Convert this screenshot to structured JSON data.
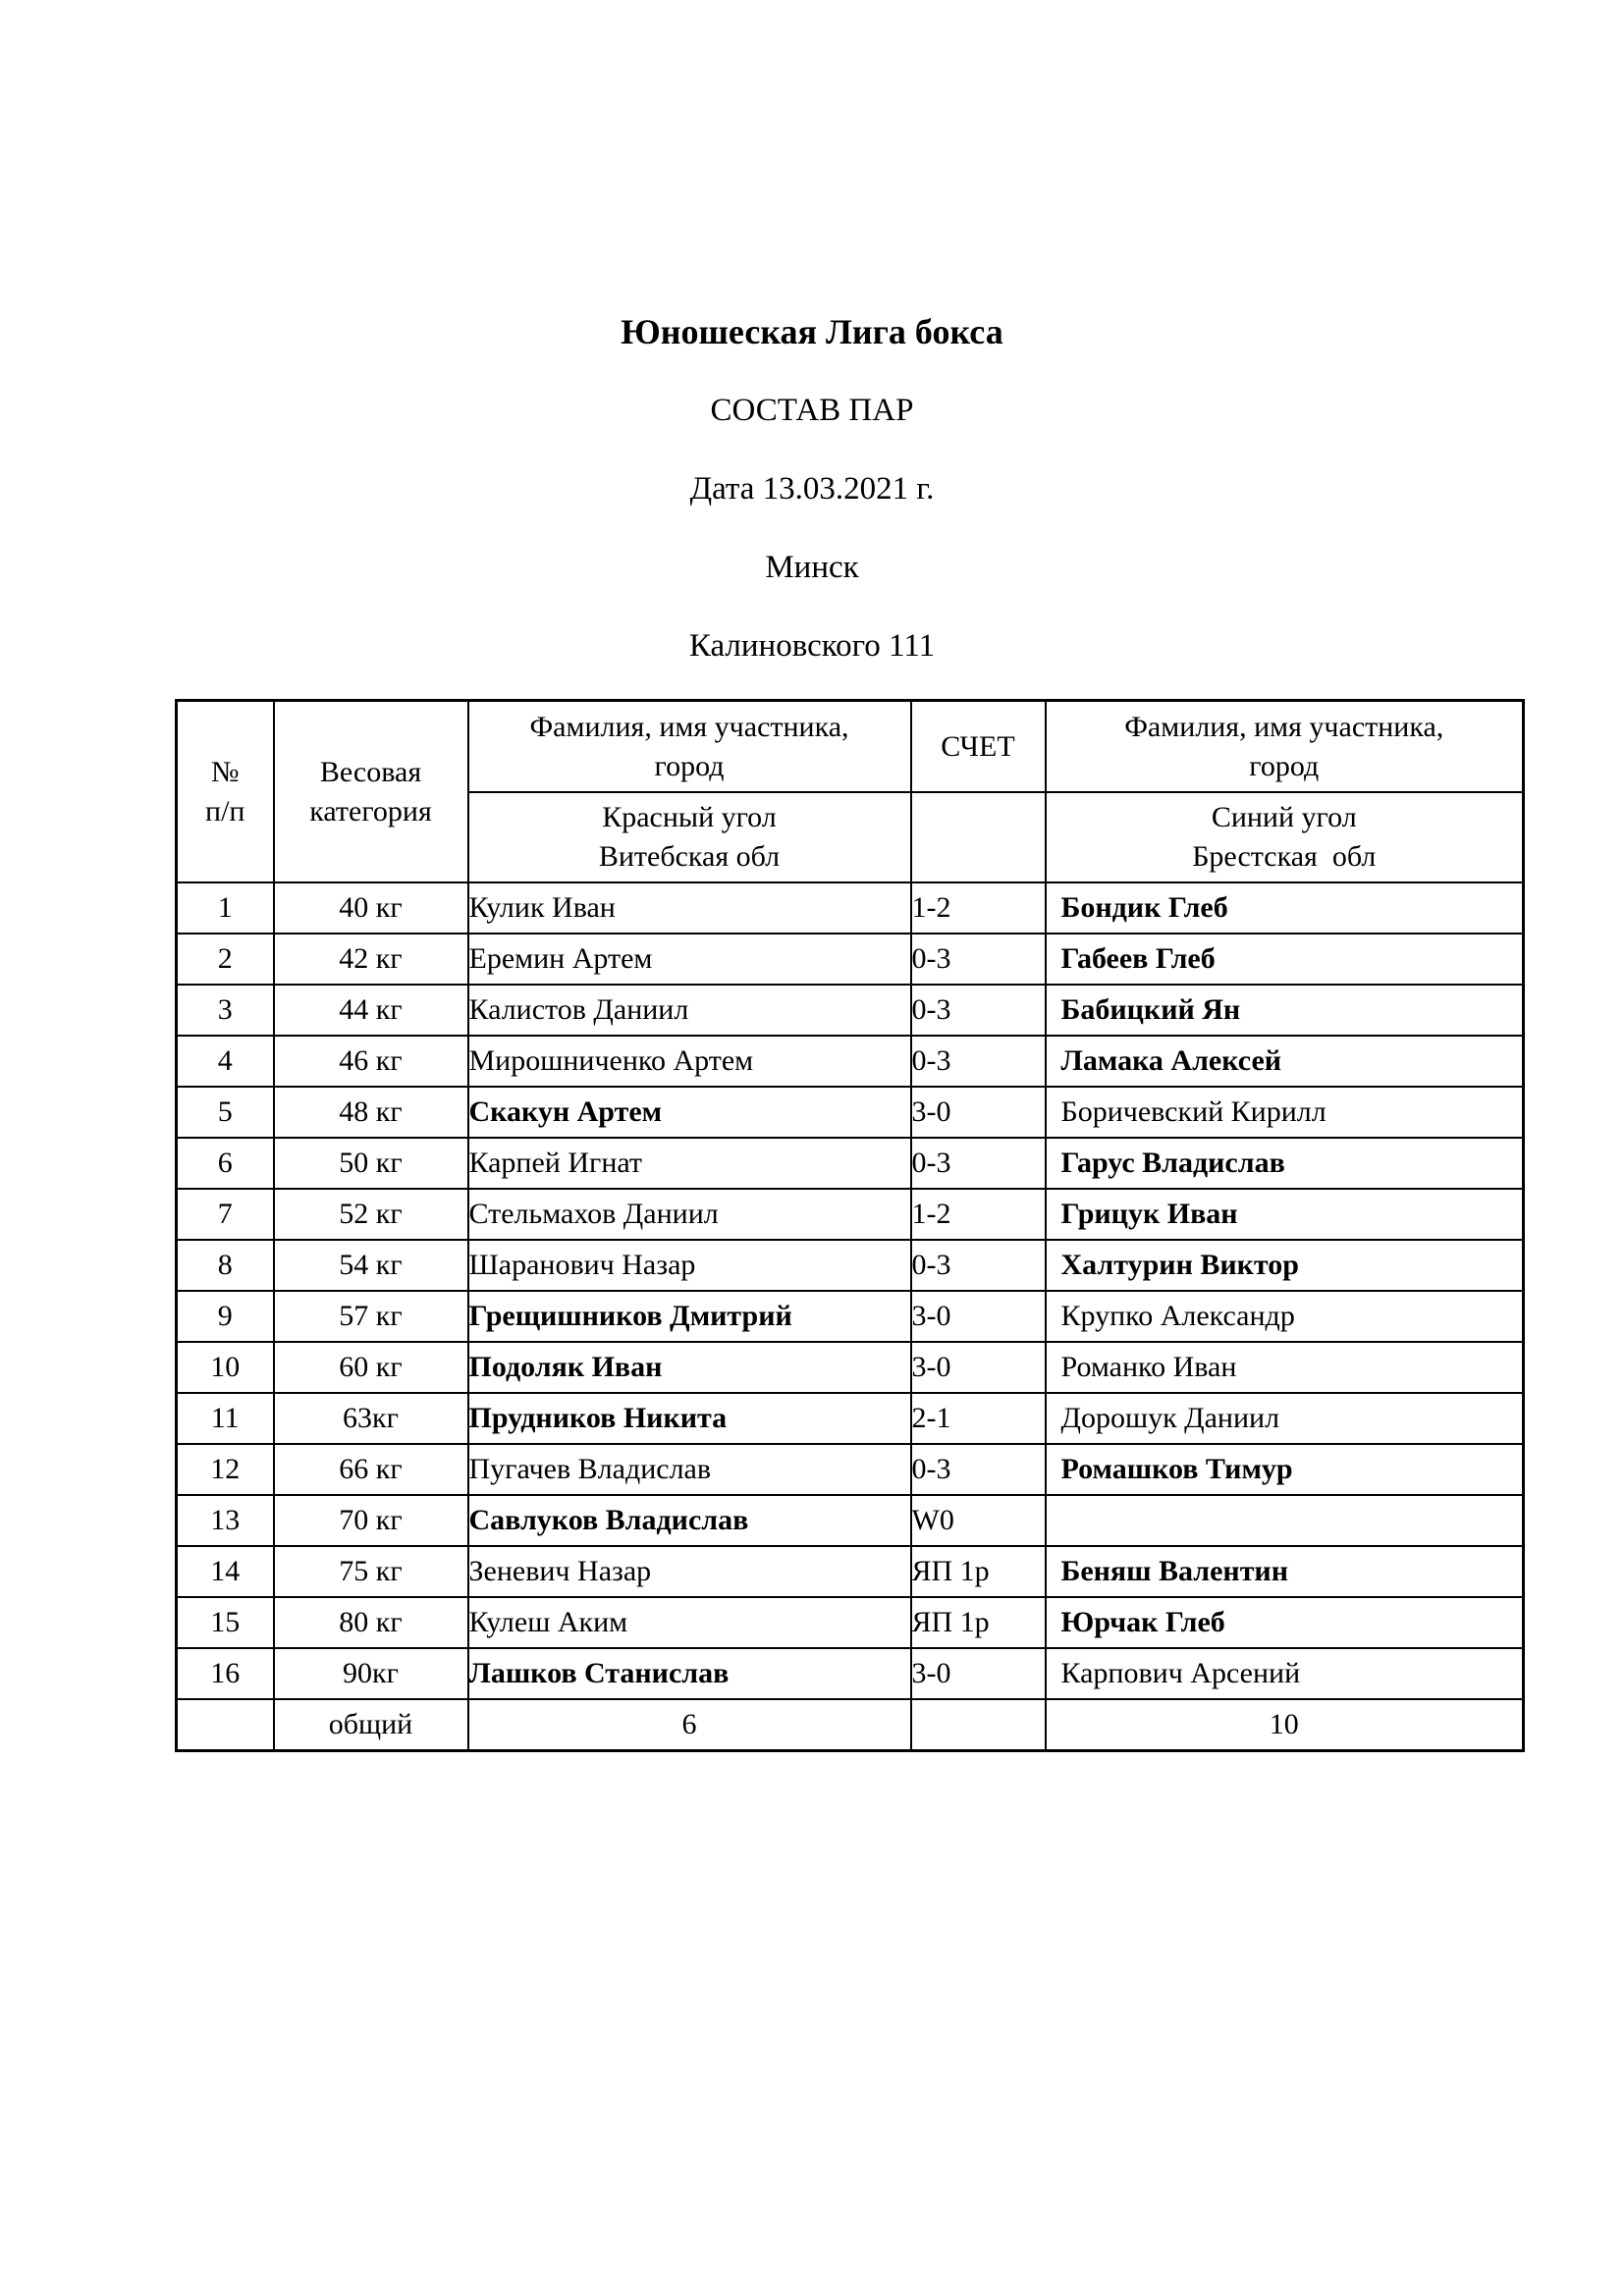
{
  "document": {
    "title": "Юношеская Лига бокса",
    "subtitle": "СОСТАВ ПАР",
    "date_line": "Дата 13.03.2021 г.",
    "city": "Минск",
    "venue": "Калиновского 111"
  },
  "table": {
    "header": {
      "row_number": "№\nп/п",
      "weight_category": "Весовая\nкатегория",
      "red_participant": "Фамилия, имя участника,\nгород",
      "red_corner": "Красный угол\nВитебская обл",
      "score": "СЧЕТ",
      "blue_participant": "Фамилия, имя участника,\nгород",
      "blue_corner": "Синий угол\nБрестская  обл"
    },
    "rows": [
      {
        "n": "1",
        "weight": "40 кг",
        "red": "Кулик Иван",
        "red_bold": false,
        "score": "1-2",
        "blue": "Бондик Глеб",
        "blue_bold": true
      },
      {
        "n": "2",
        "weight": "42 кг",
        "red": "Еремин Артем",
        "red_bold": false,
        "score": "0-3",
        "blue": "Габеев Глеб",
        "blue_bold": true
      },
      {
        "n": "3",
        "weight": "44 кг",
        "red": "Калистов Даниил",
        "red_bold": false,
        "score": "0-3",
        "blue": "Бабицкий Ян",
        "blue_bold": true
      },
      {
        "n": "4",
        "weight": "46 кг",
        "red": "Мирошниченко Артем",
        "red_bold": false,
        "score": "0-3",
        "blue": "Ламака Алексей",
        "blue_bold": true
      },
      {
        "n": "5",
        "weight": "48 кг",
        "red": "Скакун Артем",
        "red_bold": true,
        "score": "3-0",
        "blue": "Боричевский Кирилл",
        "blue_bold": false
      },
      {
        "n": "6",
        "weight": "50 кг",
        "red": "Карпей Игнат",
        "red_bold": false,
        "score": "0-3",
        "blue": "Гарус Владислав",
        "blue_bold": true
      },
      {
        "n": "7",
        "weight": "52 кг",
        "red": "Стельмахов Даниил",
        "red_bold": false,
        "score": "1-2",
        "blue": "Грицук Иван",
        "blue_bold": true
      },
      {
        "n": "8",
        "weight": "54 кг",
        "red": "Шаранович Назар",
        "red_bold": false,
        "score": "0-3",
        "blue": "Халтурин Виктор",
        "blue_bold": true
      },
      {
        "n": "9",
        "weight": "57 кг",
        "red": "Грещишников Дмитрий",
        "red_bold": true,
        "score": "3-0",
        "blue": "Крупко Александр",
        "blue_bold": false
      },
      {
        "n": "10",
        "weight": "60 кг",
        "red": "Подоляк Иван",
        "red_bold": true,
        "score": "3-0",
        "blue": "Романко Иван",
        "blue_bold": false
      },
      {
        "n": "11",
        "weight": "63кг",
        "red": "Прудников Никита",
        "red_bold": true,
        "score": "2-1",
        "blue": "Дорошук Даниил",
        "blue_bold": false
      },
      {
        "n": "12",
        "weight": "66 кг",
        "red": "Пугачев Владислав",
        "red_bold": false,
        "score": "0-3",
        "blue": "Ромашков Тимур",
        "blue_bold": true
      },
      {
        "n": "13",
        "weight": "70 кг",
        "red": "Савлуков Владислав",
        "red_bold": true,
        "score": "W0",
        "blue": "",
        "blue_bold": false
      },
      {
        "n": "14",
        "weight": "75 кг",
        "red": "Зеневич Назар",
        "red_bold": false,
        "score": "ЯП 1р",
        "blue": "Беняш Валентин",
        "blue_bold": true
      },
      {
        "n": "15",
        "weight": "80 кг",
        "red": "Кулеш Аким",
        "red_bold": false,
        "score": "ЯП 1р",
        "blue": "Юрчак Глеб",
        "blue_bold": true
      },
      {
        "n": "16",
        "weight": "90кг",
        "red": "Лашков Станислав",
        "red_bold": true,
        "score": "3-0",
        "blue": "Карпович Арсений",
        "blue_bold": false
      }
    ],
    "totals": {
      "label": "общий",
      "red_wins": "6",
      "blue_wins": "10"
    }
  }
}
